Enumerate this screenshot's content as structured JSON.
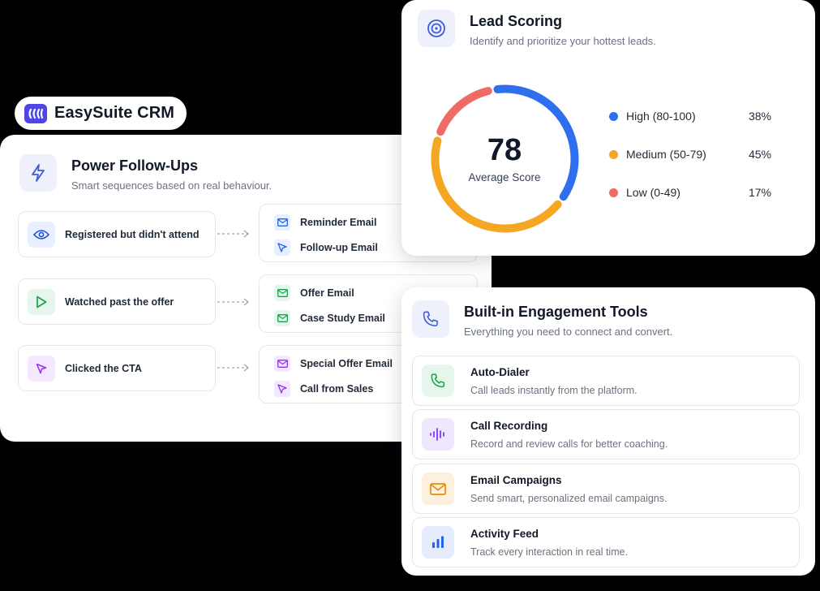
{
  "brand": {
    "name": "EasySuite CRM",
    "logo_icon": "bars-logo-icon",
    "color": "#4f46e5"
  },
  "followups": {
    "title": "Power Follow-Ups",
    "subtitle": "Smart sequences based on real behaviour.",
    "icon": "lightning-icon",
    "flows": [
      {
        "trigger": {
          "label": "Registered but didn't attend",
          "icon": "eye-icon",
          "color": "#1d4ed8",
          "bg": "#e8efff"
        },
        "actions": [
          {
            "label": "Reminder Email",
            "icon": "mail-icon",
            "color": "#2563eb",
            "bg": "#e8efff"
          },
          {
            "label": "Follow-up Email",
            "icon": "cursor-icon",
            "color": "#2563eb",
            "bg": "#e8efff"
          }
        ]
      },
      {
        "trigger": {
          "label": "Watched past the offer",
          "icon": "play-icon",
          "color": "#16a34a",
          "bg": "#e7f6ec"
        },
        "actions": [
          {
            "label": "Offer Email",
            "icon": "mail-icon",
            "color": "#16a34a",
            "bg": "#e7f6ec"
          },
          {
            "label": "Case Study Email",
            "icon": "mail-icon",
            "color": "#16a34a",
            "bg": "#e7f6ec"
          }
        ]
      },
      {
        "trigger": {
          "label": "Clicked the CTA",
          "icon": "cursor-icon",
          "color": "#9333ea",
          "bg": "#f3e8ff"
        },
        "actions": [
          {
            "label": "Special Offer Email",
            "icon": "mail-icon",
            "color": "#9333ea",
            "bg": "#f3e8ff"
          },
          {
            "label": "Call from Sales",
            "icon": "cursor-icon",
            "color": "#9333ea",
            "bg": "#f3e8ff"
          }
        ]
      }
    ]
  },
  "lead_scoring": {
    "title": "Lead Scoring",
    "subtitle": "Identify and prioritize your hottest leads.",
    "icon": "target-icon",
    "score": "78",
    "score_label": "Average Score",
    "legend": [
      {
        "label": "High (80-100)",
        "pct": "38%",
        "value": 38,
        "color": "#2f6fed"
      },
      {
        "label": "Medium (50-79)",
        "pct": "45%",
        "value": 45,
        "color": "#f5a623"
      },
      {
        "label": "Low (0-49)",
        "pct": "17%",
        "value": 17,
        "color": "#ef6b66"
      }
    ]
  },
  "engagement": {
    "title": "Built-in Engagement Tools",
    "subtitle": "Everything you need to connect and convert.",
    "icon": "phone-icon",
    "tools": [
      {
        "title": "Auto-Dialer",
        "desc": "Call leads instantly from the platform.",
        "icon": "phone-icon",
        "color": "#16a34a",
        "bg": "#e7f6ec"
      },
      {
        "title": "Call Recording",
        "desc": "Record and review calls for better coaching.",
        "icon": "waveform-icon",
        "color": "#7c3aed",
        "bg": "#efe7fd"
      },
      {
        "title": "Email Campaigns",
        "desc": "Send smart, personalized email campaigns.",
        "icon": "mail-icon",
        "color": "#ea8a0c",
        "bg": "#fdf0dd"
      },
      {
        "title": "Activity Feed",
        "desc": "Track every interaction in real time.",
        "icon": "bar-chart-icon",
        "color": "#2563eb",
        "bg": "#e5edfc"
      }
    ]
  }
}
